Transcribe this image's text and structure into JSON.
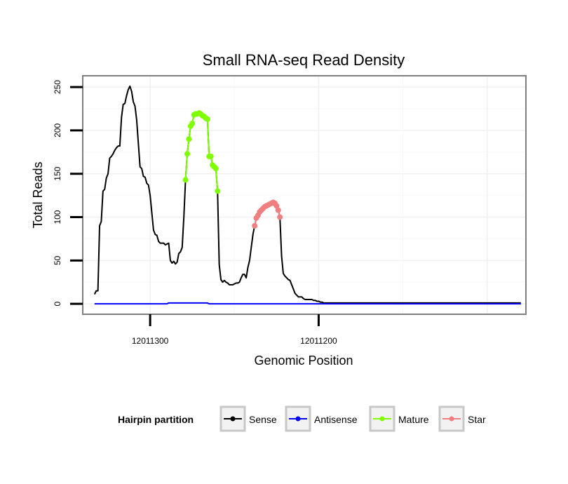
{
  "chart_data": {
    "type": "line",
    "title": "Small RNA-seq Read Density",
    "xlabel": "Genomic Position",
    "ylabel": "Total Reads",
    "x_reversed": true,
    "xlim": [
      12011340,
      12011077
    ],
    "ylim": [
      -12,
      263
    ],
    "xticks": [
      {
        "value": 12011300,
        "label": "12011300"
      },
      {
        "value": 12011200,
        "label": "12011200"
      }
    ],
    "yticks": [
      {
        "value": 0,
        "label": "0"
      },
      {
        "value": 50,
        "label": "50"
      },
      {
        "value": 100,
        "label": "100"
      },
      {
        "value": 150,
        "label": "150"
      },
      {
        "value": 200,
        "label": "200"
      },
      {
        "value": 250,
        "label": "250"
      }
    ],
    "legend": {
      "title": "Hairpin partition",
      "position": "bottom",
      "entries": [
        {
          "name": "Sense",
          "color": "#000000"
        },
        {
          "name": "Antisense",
          "color": "#0000ff"
        },
        {
          "name": "Mature",
          "color": "#7fff00"
        },
        {
          "name": "Star",
          "color": "#f08080"
        }
      ]
    },
    "series": [
      {
        "name": "Sense",
        "color": "#000000",
        "markers": false,
        "points": [
          [
            12011333,
            11
          ],
          [
            12011332,
            15
          ],
          [
            12011331,
            15
          ],
          [
            12011330,
            90
          ],
          [
            12011329,
            95
          ],
          [
            12011328,
            130
          ],
          [
            12011327,
            132
          ],
          [
            12011326,
            145
          ],
          [
            12011325,
            150
          ],
          [
            12011324,
            168
          ],
          [
            12011323,
            170
          ],
          [
            12011322,
            173
          ],
          [
            12011321,
            177
          ],
          [
            12011320,
            180
          ],
          [
            12011319,
            182
          ],
          [
            12011318,
            182
          ],
          [
            12011317,
            215
          ],
          [
            12011316,
            230
          ],
          [
            12011315,
            231
          ],
          [
            12011314,
            240
          ],
          [
            12011313,
            247
          ],
          [
            12011312,
            251
          ],
          [
            12011311,
            245
          ],
          [
            12011310,
            233
          ],
          [
            12011309,
            228
          ],
          [
            12011308,
            212
          ],
          [
            12011307,
            185
          ],
          [
            12011306,
            158
          ],
          [
            12011305,
            156
          ],
          [
            12011304,
            147
          ],
          [
            12011303,
            146
          ],
          [
            12011302,
            139
          ],
          [
            12011301,
            137
          ],
          [
            12011300,
            125
          ],
          [
            12011299,
            105
          ],
          [
            12011298,
            85
          ],
          [
            12011297,
            80
          ],
          [
            12011296,
            79
          ],
          [
            12011295,
            72
          ],
          [
            12011294,
            70
          ],
          [
            12011293,
            70
          ],
          [
            12011292,
            70
          ],
          [
            12011291,
            68
          ],
          [
            12011290,
            69
          ],
          [
            12011289,
            70
          ],
          [
            12011288,
            50
          ],
          [
            12011287,
            47
          ],
          [
            12011286,
            49
          ],
          [
            12011285,
            46
          ],
          [
            12011284,
            48
          ],
          [
            12011283,
            58
          ],
          [
            12011282,
            60
          ],
          [
            12011281,
            65
          ],
          [
            12011280,
            100
          ],
          [
            12011279,
            143
          ],
          [
            12011278,
            173
          ],
          [
            12011277,
            190
          ],
          [
            12011276,
            205
          ],
          [
            12011275,
            208
          ],
          [
            12011274,
            218
          ],
          [
            12011273,
            219
          ],
          [
            12011272,
            219
          ],
          [
            12011271,
            220
          ],
          [
            12011270,
            219
          ],
          [
            12011269,
            217
          ],
          [
            12011268,
            216
          ],
          [
            12011267,
            214
          ],
          [
            12011266,
            213
          ],
          [
            12011265,
            170
          ],
          [
            12011264,
            170
          ],
          [
            12011263,
            160
          ],
          [
            12011262,
            158
          ],
          [
            12011261,
            156
          ],
          [
            12011260,
            130
          ],
          [
            12011259,
            45
          ],
          [
            12011258,
            28
          ],
          [
            12011257,
            25
          ],
          [
            12011256,
            27
          ],
          [
            12011255,
            25
          ],
          [
            12011254,
            24
          ],
          [
            12011253,
            22
          ],
          [
            12011252,
            22
          ],
          [
            12011251,
            22
          ],
          [
            12011250,
            23
          ],
          [
            12011249,
            24
          ],
          [
            12011248,
            24
          ],
          [
            12011247,
            25
          ],
          [
            12011246,
            30
          ],
          [
            12011245,
            34
          ],
          [
            12011244,
            34
          ],
          [
            12011243,
            30
          ],
          [
            12011242,
            42
          ],
          [
            12011241,
            50
          ],
          [
            12011240,
            65
          ],
          [
            12011239,
            80
          ],
          [
            12011238,
            90
          ],
          [
            12011237,
            99
          ],
          [
            12011236,
            102
          ],
          [
            12011235,
            106
          ],
          [
            12011234,
            108
          ],
          [
            12011233,
            110
          ],
          [
            12011232,
            112
          ],
          [
            12011231,
            113
          ],
          [
            12011230,
            114
          ],
          [
            12011229,
            115
          ],
          [
            12011228,
            116
          ],
          [
            12011227,
            117
          ],
          [
            12011226,
            116
          ],
          [
            12011225,
            113
          ],
          [
            12011224,
            108
          ],
          [
            12011223,
            100
          ],
          [
            12011222,
            55
          ],
          [
            12011221,
            35
          ],
          [
            12011220,
            32
          ],
          [
            12011219,
            30
          ],
          [
            12011218,
            28
          ],
          [
            12011217,
            27
          ],
          [
            12011216,
            22
          ],
          [
            12011215,
            17
          ],
          [
            12011214,
            12
          ],
          [
            12011213,
            10
          ],
          [
            12011212,
            8
          ],
          [
            12011211,
            8
          ],
          [
            12011210,
            8
          ],
          [
            12011209,
            6
          ],
          [
            12011208,
            5
          ],
          [
            12011207,
            5
          ],
          [
            12011206,
            5
          ],
          [
            12011205,
            5
          ],
          [
            12011204,
            5
          ],
          [
            12011203,
            4
          ],
          [
            12011202,
            4
          ],
          [
            12011201,
            3
          ],
          [
            12011200,
            3
          ],
          [
            12011199,
            2
          ],
          [
            12011198,
            2
          ],
          [
            12011197,
            1
          ],
          [
            12011195,
            1
          ],
          [
            12011180,
            1
          ],
          [
            12011160,
            1
          ],
          [
            12011150,
            1
          ],
          [
            12011140,
            1
          ],
          [
            12011130,
            1
          ],
          [
            12011120,
            1
          ],
          [
            12011110,
            1
          ],
          [
            12011100,
            1
          ],
          [
            12011090,
            1
          ],
          [
            12011080,
            1
          ]
        ]
      },
      {
        "name": "Antisense",
        "color": "#0000ff",
        "markers": false,
        "points": [
          [
            12011333,
            0
          ],
          [
            12011290,
            0
          ],
          [
            12011289,
            1
          ],
          [
            12011266,
            1
          ],
          [
            12011265,
            0
          ],
          [
            12011250,
            0
          ],
          [
            12011200,
            0
          ],
          [
            12011150,
            0
          ],
          [
            12011100,
            0
          ],
          [
            12011080,
            0
          ]
        ]
      },
      {
        "name": "Mature",
        "color": "#7fff00",
        "markers": true,
        "points": [
          [
            12011279,
            143
          ],
          [
            12011278,
            173
          ],
          [
            12011277,
            190
          ],
          [
            12011276,
            205
          ],
          [
            12011275,
            208
          ],
          [
            12011274,
            218
          ],
          [
            12011273,
            219
          ],
          [
            12011272,
            219
          ],
          [
            12011271,
            220
          ],
          [
            12011270,
            219
          ],
          [
            12011269,
            217
          ],
          [
            12011268,
            216
          ],
          [
            12011267,
            214
          ],
          [
            12011266,
            213
          ],
          [
            12011265,
            170
          ],
          [
            12011264,
            170
          ],
          [
            12011263,
            160
          ],
          [
            12011262,
            158
          ],
          [
            12011261,
            156
          ],
          [
            12011260,
            130
          ]
        ]
      },
      {
        "name": "Star",
        "color": "#f08080",
        "markers": true,
        "points": [
          [
            12011238,
            90
          ],
          [
            12011237,
            99
          ],
          [
            12011236,
            102
          ],
          [
            12011235,
            106
          ],
          [
            12011234,
            108
          ],
          [
            12011233,
            110
          ],
          [
            12011232,
            112
          ],
          [
            12011231,
            113
          ],
          [
            12011230,
            114
          ],
          [
            12011229,
            115
          ],
          [
            12011228,
            116
          ],
          [
            12011227,
            117
          ],
          [
            12011226,
            116
          ],
          [
            12011225,
            113
          ],
          [
            12011224,
            108
          ],
          [
            12011223,
            100
          ]
        ]
      }
    ]
  }
}
